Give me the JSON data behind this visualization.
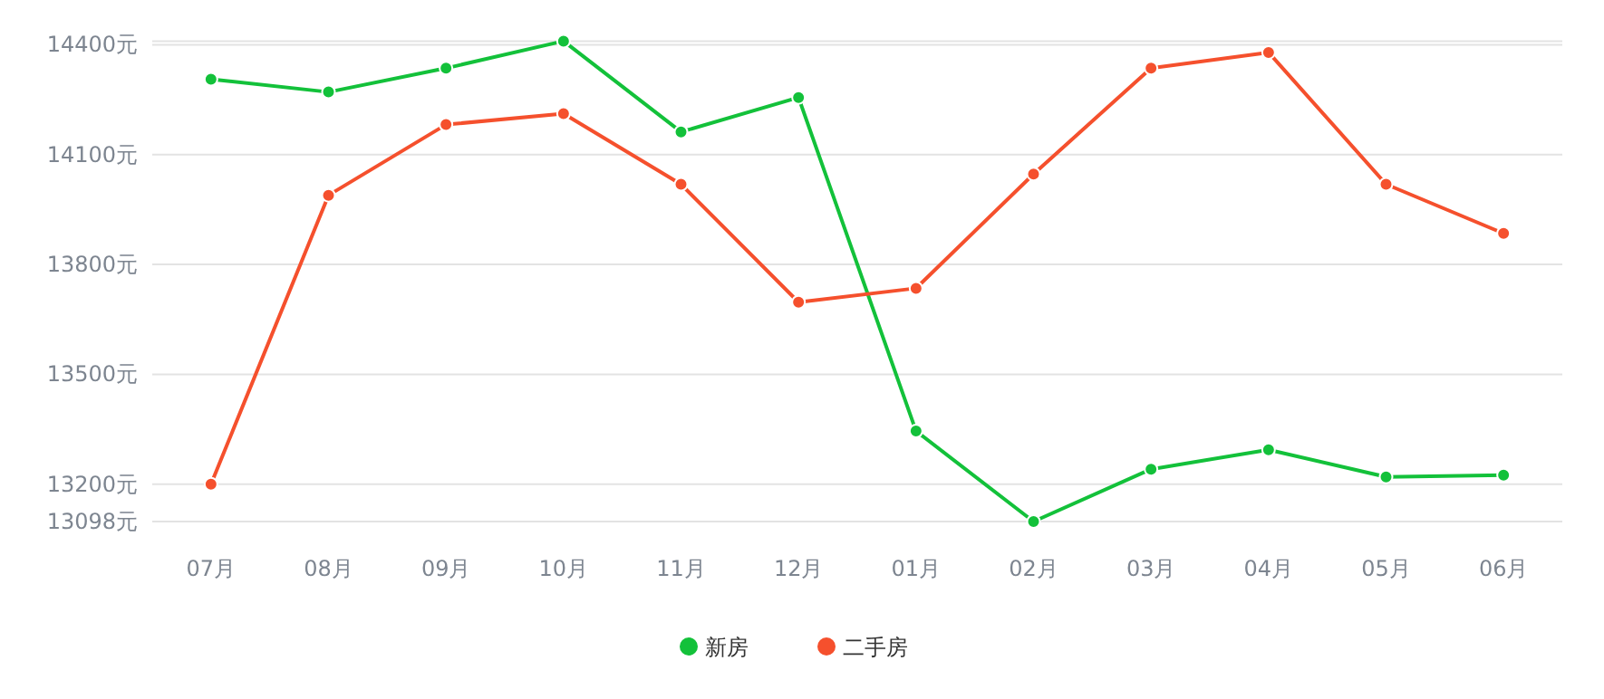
{
  "chart_data": {
    "type": "line",
    "categories": [
      "07月",
      "08月",
      "09月",
      "10月",
      "11月",
      "12月",
      "01月",
      "02月",
      "03月",
      "04月",
      "05月",
      "06月"
    ],
    "series": [
      {
        "name": "新房",
        "color": "#13c13a",
        "values": [
          14306,
          14271,
          14336,
          14410,
          14162,
          14256,
          13345,
          13098,
          13241,
          13294,
          13220,
          13225
        ]
      },
      {
        "name": "二手房",
        "color": "#f5502d",
        "values": [
          13200,
          13989,
          14182,
          14212,
          14019,
          13697,
          13735,
          14047,
          14336,
          14379,
          14019,
          13885
        ]
      }
    ],
    "ylim": [
      13098,
      14410
    ],
    "yticks": [
      {
        "value": 13098,
        "label": "13098元"
      },
      {
        "value": 13200,
        "label": "13200元"
      },
      {
        "value": 13500,
        "label": "13500元"
      },
      {
        "value": 13800,
        "label": "13800元"
      },
      {
        "value": 14100,
        "label": "14100元"
      },
      {
        "value": 14400,
        "label": "14400元"
      },
      {
        "value": 14410,
        "label": null
      }
    ],
    "grid": "y",
    "marker": "circle",
    "line_style": "solid",
    "legend": "bottom"
  }
}
